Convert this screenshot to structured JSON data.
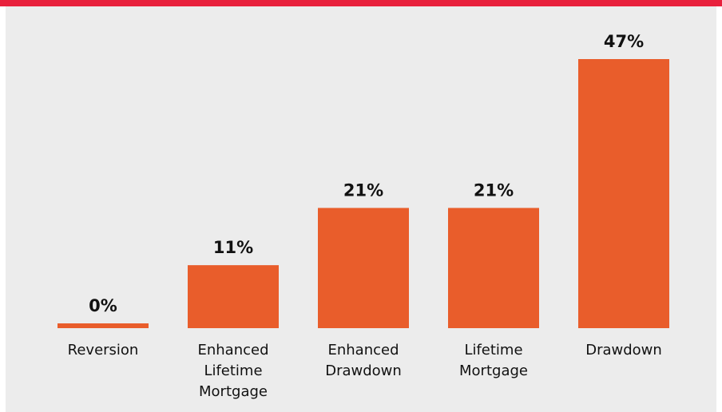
{
  "colors": {
    "top_bar": "#e8203c",
    "panel_background": "#ececec",
    "bar": "#e95d2b",
    "text": "#111111"
  },
  "chart_data": {
    "type": "bar",
    "categories": [
      "Reversion",
      "Enhanced Lifetime Mortgage",
      "Enhanced Drawdown",
      "Lifetime Mortgage",
      "Drawdown"
    ],
    "category_lines": [
      [
        "Reversion"
      ],
      [
        "Enhanced",
        "Lifetime",
        "Mortgage"
      ],
      [
        "Enhanced",
        "Drawdown"
      ],
      [
        "Lifetime",
        "Mortgage"
      ],
      [
        "Drawdown"
      ]
    ],
    "values": [
      0,
      11,
      21,
      21,
      47
    ],
    "value_labels": [
      "0%",
      "11%",
      "21%",
      "21%",
      "47%"
    ],
    "unit": "%",
    "title": "",
    "xlabel": "",
    "ylabel": "",
    "ylim": [
      0,
      47
    ],
    "grid": false,
    "legend": "none"
  }
}
